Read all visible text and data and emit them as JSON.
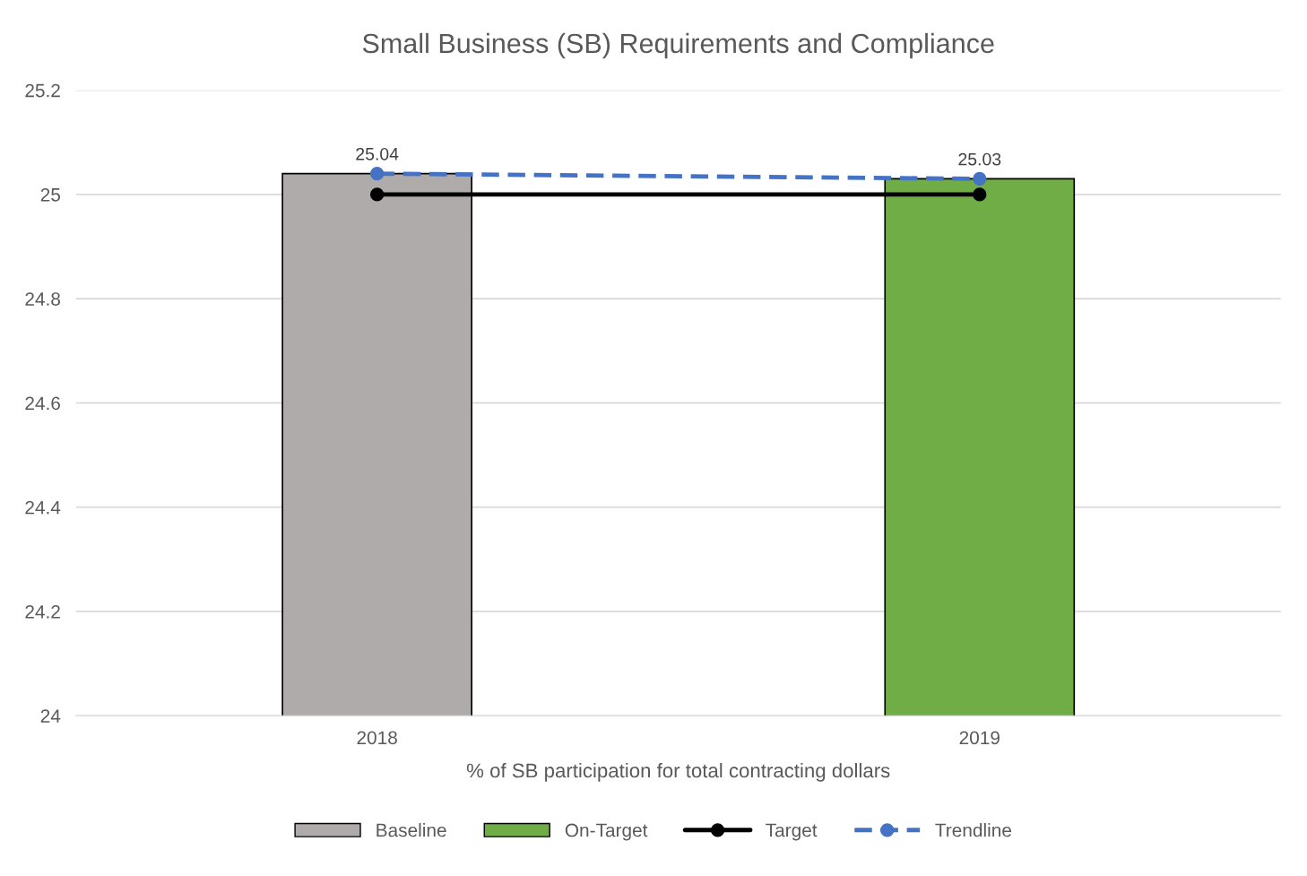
{
  "chart_data": {
    "type": "bar",
    "title": "Small Business (SB) Requirements and Compliance",
    "xlabel": "% of SB participation for total contracting dollars",
    "categories": [
      "2018",
      "2019"
    ],
    "series": [
      {
        "name": "Baseline",
        "color": "#afabab",
        "values": [
          25.04,
          null
        ],
        "value_labels": [
          "25.04",
          null
        ]
      },
      {
        "name": "On-Target",
        "color": "#70ad47",
        "values": [
          null,
          25.03
        ],
        "value_labels": [
          null,
          "25.03"
        ]
      },
      {
        "name": "Target",
        "type": "line",
        "color": "#000000",
        "values": [
          25,
          25
        ],
        "marker": "circle",
        "line_style": "solid"
      },
      {
        "name": "Trendline",
        "type": "line",
        "color": "#4472c4",
        "values": [
          25.04,
          25.03
        ],
        "marker": "circle",
        "line_style": "dashed"
      }
    ],
    "ylim": [
      24,
      25.2
    ],
    "yticks": [
      24,
      24.2,
      24.4,
      24.6,
      24.8,
      25,
      25.2
    ],
    "grid": "y",
    "legend": "bottom"
  }
}
